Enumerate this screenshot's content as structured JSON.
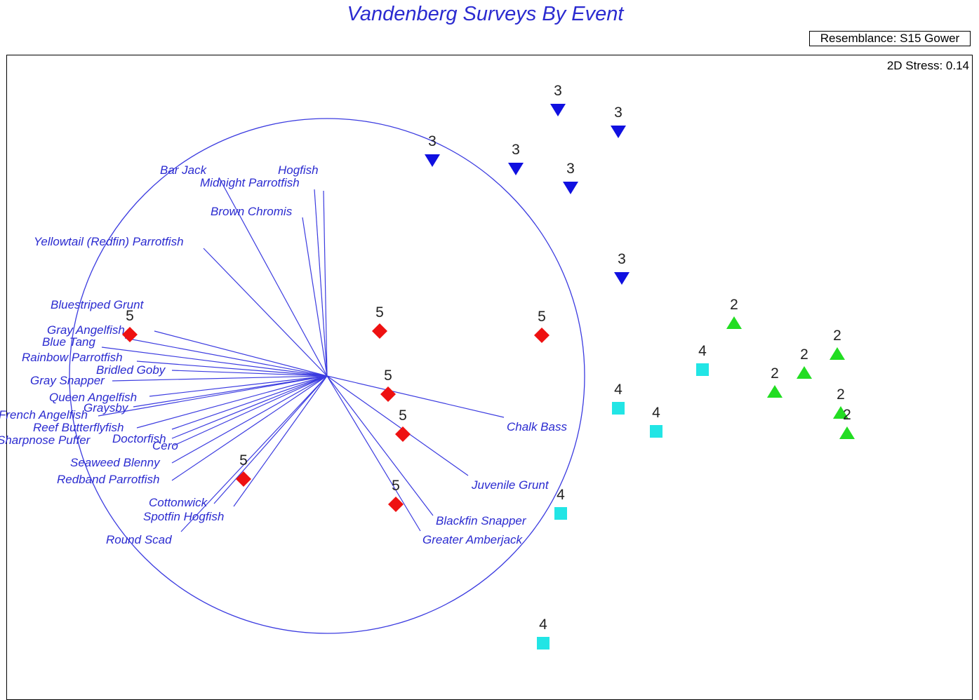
{
  "chart_data": {
    "type": "scatter",
    "title": "Vandenberg Surveys By Event",
    "resemblance": "Resemblance: S15 Gower",
    "stress": "2D Stress: 0.14",
    "colors": {
      "2": "#22dd22",
      "3": "#1010e0",
      "4": "#22e5e5",
      "5": "#ee1111",
      "vector": "#3b3be0"
    },
    "series": [
      {
        "event": "2",
        "marker": "triangle-up",
        "points": [
          [
            1046,
            461
          ],
          [
            1193,
            505
          ],
          [
            1146,
            532
          ],
          [
            1104,
            559
          ],
          [
            1198,
            589
          ],
          [
            1207,
            618
          ]
        ]
      },
      {
        "event": "3",
        "marker": "triangle-down",
        "points": [
          [
            795,
            156
          ],
          [
            881,
            187
          ],
          [
            616,
            228
          ],
          [
            735,
            240
          ],
          [
            813,
            267
          ],
          [
            886,
            396
          ]
        ]
      },
      {
        "event": "4",
        "marker": "square",
        "points": [
          [
            1001,
            527
          ],
          [
            881,
            582
          ],
          [
            935,
            615
          ],
          [
            799,
            732
          ],
          [
            774,
            917
          ]
        ]
      },
      {
        "event": "5",
        "marker": "diamond",
        "points": [
          [
            185,
            477
          ],
          [
            541,
            472
          ],
          [
            772,
            478
          ],
          [
            553,
            562
          ],
          [
            574,
            619
          ],
          [
            347,
            683
          ],
          [
            564,
            719
          ]
        ]
      }
    ],
    "vectors": [
      {
        "name": "Bar Jack",
        "end": [
          312,
          253
        ]
      },
      {
        "name": "Hogfish",
        "end": [
          461,
          272
        ]
      },
      {
        "name": "Midnight Parrotfish",
        "end": [
          448,
          270
        ]
      },
      {
        "name": "Brown Chromis",
        "end": [
          431,
          310
        ]
      },
      {
        "name": "Yellowtail (Redfin)  Parrotfish",
        "end": [
          290,
          354
        ]
      },
      {
        "name": "Bluestriped Grunt",
        "end": [
          220,
          472
        ]
      },
      {
        "name": "Gray Angelfish",
        "end": [
          178,
          482
        ]
      },
      {
        "name": "Blue Tang",
        "end": [
          145,
          495
        ]
      },
      {
        "name": "Rainbow  Parrotfish",
        "end": [
          195,
          515
        ]
      },
      {
        "name": "Bridled Goby",
        "end": [
          245,
          528
        ]
      },
      {
        "name": "Gray Snapper",
        "end": [
          160,
          543
        ]
      },
      {
        "name": "Queen Angelfish",
        "end": [
          213,
          565
        ]
      },
      {
        "name": "Graysby",
        "end": [
          190,
          580
        ]
      },
      {
        "name": "French Angelfish",
        "end": [
          140,
          593
        ]
      },
      {
        "name": "Reef Butterflyfish",
        "end": [
          195,
          610
        ]
      },
      {
        "name": "Sharpnose  Puffer",
        "end": [
          245,
          612
        ]
      },
      {
        "name": "Doctorfish",
        "end": [
          245,
          625
        ]
      },
      {
        "name": "Cero",
        "end": [
          248,
          635
        ]
      },
      {
        "name": "Seaweed  Blenny",
        "end": [
          245,
          660
        ]
      },
      {
        "name": "Redband  Parrotfish",
        "end": [
          245,
          685
        ]
      },
      {
        "name": "Cottonwick",
        "end": [
          305,
          718
        ]
      },
      {
        "name": "Spotfin Hogfish",
        "end": [
          333,
          722
        ]
      },
      {
        "name": "Round Scad",
        "end": [
          258,
          758
        ]
      },
      {
        "name": "Chalk Bass",
        "end": [
          718,
          595
        ]
      },
      {
        "name": "Juvenile Grunt",
        "end": [
          667,
          678
        ]
      },
      {
        "name": "Blackfin Snapper",
        "end": [
          617,
          735
        ]
      },
      {
        "name": "Greater Amberjack",
        "end": [
          599,
          757
        ]
      }
    ],
    "labels": [
      {
        "name": "Bar Jack",
        "pos": [
          228,
          248
        ],
        "anchor": "start"
      },
      {
        "name": "Hogfish",
        "pos": [
          396,
          248
        ],
        "anchor": "start"
      },
      {
        "name": "Midnight Parrotfish",
        "pos": [
          285,
          266
        ],
        "anchor": "start"
      },
      {
        "name": "Brown Chromis",
        "pos": [
          300,
          307
        ],
        "anchor": "start"
      },
      {
        "name": "Yellowtail (Redfin)  Parrotfish",
        "pos": [
          48,
          350
        ],
        "anchor": "start"
      },
      {
        "name": "Bluestriped Grunt",
        "pos": [
          72,
          440
        ],
        "anchor": "start"
      },
      {
        "name": "Gray Angelfish",
        "pos": [
          67,
          476
        ],
        "anchor": "start"
      },
      {
        "name": "Blue Tang",
        "pos": [
          60,
          493
        ],
        "anchor": "start"
      },
      {
        "name": "Rainbow  Parrotfish",
        "pos": [
          31,
          515
        ],
        "anchor": "start"
      },
      {
        "name": "Bridled Goby",
        "pos": [
          137,
          533
        ],
        "anchor": "start"
      },
      {
        "name": "Gray Snapper",
        "pos": [
          43,
          548
        ],
        "anchor": "start"
      },
      {
        "name": "Queen Angelfish",
        "pos": [
          70,
          572
        ],
        "anchor": "start"
      },
      {
        "name": "Graysby",
        "pos": [
          119,
          587
        ],
        "anchor": "start"
      },
      {
        "name": "French Angelfish",
        "pos": [
          -2,
          597
        ],
        "anchor": "start"
      },
      {
        "name": "Reef Butterflyfish",
        "pos": [
          47,
          615
        ],
        "anchor": "start"
      },
      {
        "name": "Sharpnose  Puffer",
        "pos": [
          -4,
          633
        ],
        "anchor": "start"
      },
      {
        "name": "Doctorfish",
        "pos": [
          160,
          631
        ],
        "anchor": "start"
      },
      {
        "name": "Cero",
        "pos": [
          217,
          641
        ],
        "anchor": "start"
      },
      {
        "name": "Seaweed  Blenny",
        "pos": [
          100,
          665
        ],
        "anchor": "start"
      },
      {
        "name": "Redband  Parrotfish",
        "pos": [
          81,
          689
        ],
        "anchor": "start"
      },
      {
        "name": "Cottonwick",
        "pos": [
          212,
          722
        ],
        "anchor": "start"
      },
      {
        "name": "Spotfin Hogfish",
        "pos": [
          204,
          742
        ],
        "anchor": "start"
      },
      {
        "name": "Round Scad",
        "pos": [
          151,
          775
        ],
        "anchor": "start"
      },
      {
        "name": "Chalk Bass",
        "pos": [
          722,
          614
        ],
        "anchor": "start"
      },
      {
        "name": "Juvenile Grunt",
        "pos": [
          672,
          697
        ],
        "anchor": "start"
      },
      {
        "name": "Blackfin Snapper",
        "pos": [
          621,
          748
        ],
        "anchor": "start"
      },
      {
        "name": "Greater Amberjack",
        "pos": [
          602,
          775
        ],
        "anchor": "start"
      }
    ]
  }
}
